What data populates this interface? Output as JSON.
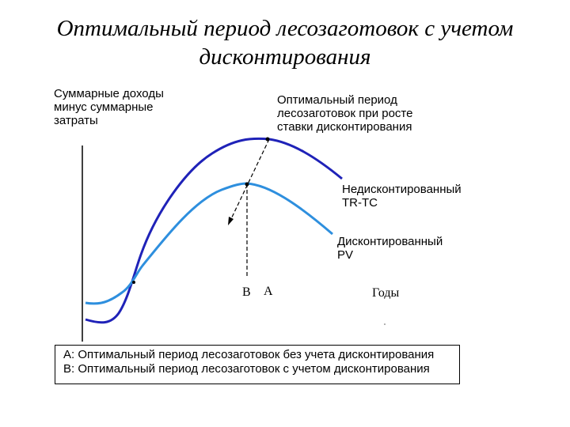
{
  "title": {
    "line1": "Оптимальный период лесозаготовок с учетом",
    "line2": "дисконтирования"
  },
  "labels": {
    "y_axis": [
      "Суммарные доходы",
      "минус суммарные",
      "затраты"
    ],
    "optimal_note": [
      "Оптимальный период",
      "лесозаготовок при росте",
      "ставки дисконтирования"
    ],
    "undiscounted": [
      "Недисконтированный",
      "TR-TC"
    ],
    "discounted": [
      "Дисконтированный",
      "PV"
    ],
    "point_b": "B",
    "point_a": "A",
    "x_axis": "Годы"
  },
  "legend": {
    "line_a": "A: Оптимальный период лесозаготовок без учета дисконтирования",
    "line_b": "B: Оптимальный период лесозаготовок с учетом дисконтирования"
  },
  "colors": {
    "undiscounted_curve": "#1f22b8",
    "discounted_curve": "#2e8fde"
  }
}
